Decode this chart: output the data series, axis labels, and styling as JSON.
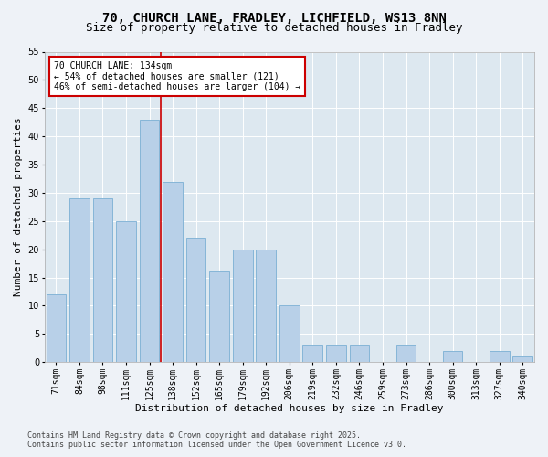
{
  "title_line1": "70, CHURCH LANE, FRADLEY, LICHFIELD, WS13 8NN",
  "title_line2": "Size of property relative to detached houses in Fradley",
  "xlabel": "Distribution of detached houses by size in Fradley",
  "ylabel": "Number of detached properties",
  "categories": [
    "71sqm",
    "84sqm",
    "98sqm",
    "111sqm",
    "125sqm",
    "138sqm",
    "152sqm",
    "165sqm",
    "179sqm",
    "192sqm",
    "206sqm",
    "219sqm",
    "232sqm",
    "246sqm",
    "259sqm",
    "273sqm",
    "286sqm",
    "300sqm",
    "313sqm",
    "327sqm",
    "340sqm"
  ],
  "values": [
    12,
    29,
    29,
    25,
    43,
    32,
    22,
    16,
    20,
    20,
    10,
    3,
    3,
    3,
    0,
    3,
    0,
    2,
    0,
    2,
    1
  ],
  "bar_color": "#b8d0e8",
  "bar_edge_color": "#7aafd4",
  "vline_color": "#cc0000",
  "annotation_text": "70 CHURCH LANE: 134sqm\n← 54% of detached houses are smaller (121)\n46% of semi-detached houses are larger (104) →",
  "annotation_box_color": "#cc0000",
  "ylim": [
    0,
    55
  ],
  "yticks": [
    0,
    5,
    10,
    15,
    20,
    25,
    30,
    35,
    40,
    45,
    50,
    55
  ],
  "plot_bg_color": "#dde8f0",
  "fig_bg_color": "#eef2f7",
  "footer_text": "Contains HM Land Registry data © Crown copyright and database right 2025.\nContains public sector information licensed under the Open Government Licence v3.0.",
  "title_fontsize": 10,
  "subtitle_fontsize": 9,
  "axis_label_fontsize": 8,
  "tick_fontsize": 7,
  "annotation_fontsize": 7,
  "footer_fontsize": 6
}
